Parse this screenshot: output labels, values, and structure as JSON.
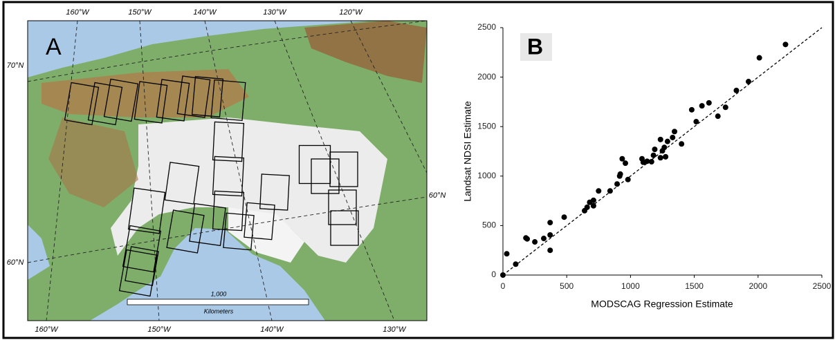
{
  "map": {
    "panel_label": "A",
    "top_longitudes": [
      "160°W",
      "150°W",
      "140°W",
      "130°W",
      "120°W"
    ],
    "bottom_longitudes": [
      "160°W",
      "150°W",
      "140°W",
      "130°W"
    ],
    "left_latitudes": [
      "70°N",
      "60°N"
    ],
    "right_latitudes": [
      "60°N"
    ],
    "scale_label": "1,000",
    "scale_unit": "Kilometers"
  },
  "chart_data": {
    "type": "scatter",
    "panel_label": "B",
    "x_label": "MODSCAG Regression Estimate",
    "y_label": "Landsat NDSI Estimate",
    "color": "#000000",
    "x": [
      0,
      30,
      100,
      180,
      190,
      250,
      320,
      370,
      370,
      370,
      480,
      640,
      660,
      680,
      710,
      710,
      750,
      840,
      895,
      915,
      920,
      935,
      960,
      980,
      1090,
      1100,
      1130,
      1165,
      1180,
      1190,
      1235,
      1235,
      1250,
      1265,
      1275,
      1290,
      1330,
      1345,
      1400,
      1480,
      1515,
      1560,
      1615,
      1685,
      1745,
      1830,
      1925,
      2010,
      2215
    ],
    "y": [
      0,
      215,
      110,
      375,
      365,
      335,
      370,
      405,
      530,
      250,
      585,
      650,
      685,
      735,
      755,
      700,
      850,
      850,
      920,
      1000,
      1020,
      1175,
      1130,
      965,
      1175,
      1140,
      1150,
      1145,
      1210,
      1270,
      1185,
      1370,
      1255,
      1290,
      1195,
      1350,
      1390,
      1450,
      1325,
      1670,
      1550,
      1710,
      1740,
      1605,
      1695,
      1865,
      1955,
      2195,
      2330
    ],
    "xlim": [
      0,
      2500
    ],
    "ylim": [
      0,
      2500
    ],
    "xticks": [
      0,
      500,
      1000,
      1500,
      2000,
      2500
    ],
    "yticks": [
      0,
      500,
      1000,
      1500,
      2000,
      2500
    ]
  }
}
